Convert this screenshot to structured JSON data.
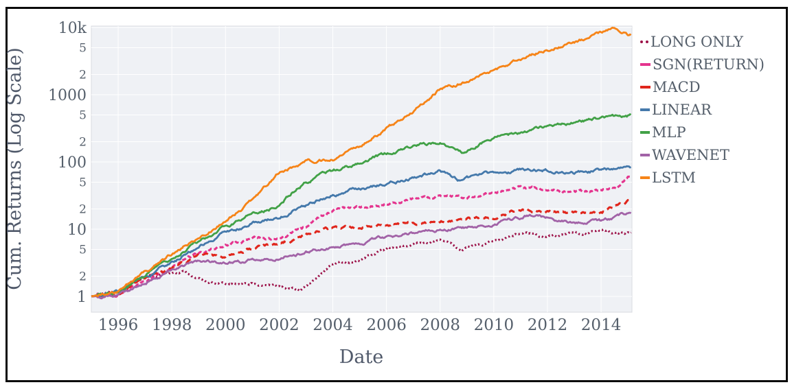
{
  "figure": {
    "background": "#ffffff",
    "border_color": "#0a0a0a"
  },
  "chart_data": {
    "type": "line",
    "title": "",
    "xlabel": "Date",
    "ylabel": "Cum. Returns (Log Scale)",
    "plot_bg": "#eff1f5",
    "grid_color": "#ffffff",
    "frame_color": "#d8dbe0",
    "text_color": "#555f6b",
    "grid": true,
    "legend_position": "right",
    "x_axis": {
      "range": [
        1995,
        2015.15
      ],
      "ticks": [
        {
          "label": "1996",
          "value": 1996
        },
        {
          "label": "1998",
          "value": 1998
        },
        {
          "label": "2000",
          "value": 2000
        },
        {
          "label": "2002",
          "value": 2002
        },
        {
          "label": "2004",
          "value": 2004
        },
        {
          "label": "2006",
          "value": 2006
        },
        {
          "label": "2008",
          "value": 2008
        },
        {
          "label": "2010",
          "value": 2010
        },
        {
          "label": "2012",
          "value": 2012
        },
        {
          "label": "2014",
          "value": 2014
        }
      ]
    },
    "y_axis": {
      "scale": "log",
      "range": [
        1,
        10000
      ],
      "ticks": [
        {
          "label": "10k",
          "value": 10000,
          "major": true
        },
        {
          "label": "5",
          "value": 5000,
          "major": false
        },
        {
          "label": "2",
          "value": 2000,
          "major": false
        },
        {
          "label": "1000",
          "value": 1000,
          "major": true
        },
        {
          "label": "5",
          "value": 500,
          "major": false
        },
        {
          "label": "2",
          "value": 200,
          "major": false
        },
        {
          "label": "100",
          "value": 100,
          "major": true
        },
        {
          "label": "5",
          "value": 50,
          "major": false
        },
        {
          "label": "2",
          "value": 20,
          "major": false
        },
        {
          "label": "10",
          "value": 10,
          "major": true
        },
        {
          "label": "5",
          "value": 5,
          "major": false
        },
        {
          "label": "2",
          "value": 2,
          "major": false
        },
        {
          "label": "1",
          "value": 1,
          "major": true
        }
      ]
    },
    "series": [
      {
        "name": "LONG ONLY",
        "color": "#9c1148",
        "dash": "dot",
        "points": [
          [
            1995,
            1
          ],
          [
            1996,
            1.2
          ],
          [
            1997,
            1.95
          ],
          [
            1998,
            2.2
          ],
          [
            1998.5,
            2.3
          ],
          [
            1999,
            1.8
          ],
          [
            2000,
            1.5
          ],
          [
            2001,
            1.6
          ],
          [
            2002,
            1.35
          ],
          [
            2002.8,
            1.26
          ],
          [
            2004,
            3
          ],
          [
            2005,
            3.4
          ],
          [
            2006,
            5
          ],
          [
            2007,
            5.8
          ],
          [
            2008,
            6.9
          ],
          [
            2008.8,
            4.8
          ],
          [
            2009.5,
            6
          ],
          [
            2010,
            6.5
          ],
          [
            2011.2,
            9.3
          ],
          [
            2012,
            7.8
          ],
          [
            2013,
            8.6
          ],
          [
            2014,
            9.3
          ],
          [
            2015,
            8.7
          ]
        ]
      },
      {
        "name": "SGN(RETURN)",
        "color": "#e4348e",
        "dash": "dash",
        "points": [
          [
            1995,
            1
          ],
          [
            1996,
            1.1
          ],
          [
            1997,
            1.7
          ],
          [
            1998,
            2.8
          ],
          [
            1999,
            4.3
          ],
          [
            2000,
            5.6
          ],
          [
            2001,
            7.5
          ],
          [
            2002,
            7.2
          ],
          [
            2002.5,
            8.8
          ],
          [
            2003,
            11
          ],
          [
            2004,
            19
          ],
          [
            2005,
            21
          ],
          [
            2006,
            24
          ],
          [
            2007,
            28
          ],
          [
            2008,
            30
          ],
          [
            2009,
            29
          ],
          [
            2010,
            33
          ],
          [
            2011,
            41
          ],
          [
            2012,
            38
          ],
          [
            2013,
            35
          ],
          [
            2014,
            38
          ],
          [
            2014.7,
            44
          ],
          [
            2015,
            62
          ]
        ]
      },
      {
        "name": "MACD",
        "color": "#e0261c",
        "dash": "dash",
        "points": [
          [
            1995,
            1
          ],
          [
            1996,
            1.1
          ],
          [
            1997,
            1.8
          ],
          [
            1998,
            2.6
          ],
          [
            1999,
            4.1
          ],
          [
            2000,
            3.9
          ],
          [
            2001,
            5.2
          ],
          [
            2002,
            6.1
          ],
          [
            2003,
            8.5
          ],
          [
            2004,
            10.2
          ],
          [
            2005,
            11
          ],
          [
            2006,
            11.8
          ],
          [
            2007,
            12.5
          ],
          [
            2008,
            13.5
          ],
          [
            2009,
            14.5
          ],
          [
            2010,
            15
          ],
          [
            2011,
            20
          ],
          [
            2012,
            18
          ],
          [
            2013,
            17.5
          ],
          [
            2014,
            17
          ],
          [
            2015,
            27
          ]
        ]
      },
      {
        "name": "LINEAR",
        "color": "#4579ab",
        "dash": "solid",
        "points": [
          [
            1995,
            1
          ],
          [
            1996,
            1.15
          ],
          [
            1997,
            1.9
          ],
          [
            1998,
            3.2
          ],
          [
            1999,
            5.5
          ],
          [
            2000,
            8.7
          ],
          [
            2001,
            12
          ],
          [
            2002,
            15
          ],
          [
            2003,
            22
          ],
          [
            2004,
            33
          ],
          [
            2005,
            40
          ],
          [
            2006,
            47
          ],
          [
            2007,
            57
          ],
          [
            2008,
            72
          ],
          [
            2008.7,
            53
          ],
          [
            2009,
            58
          ],
          [
            2010,
            68
          ],
          [
            2011,
            76
          ],
          [
            2012,
            77
          ],
          [
            2013,
            68
          ],
          [
            2014,
            75
          ],
          [
            2015,
            85
          ]
        ]
      },
      {
        "name": "MLP",
        "color": "#42a147",
        "dash": "solid",
        "points": [
          [
            1995,
            1
          ],
          [
            1996,
            1.15
          ],
          [
            1997,
            2
          ],
          [
            1998,
            3.7
          ],
          [
            1999,
            6.6
          ],
          [
            2000,
            11
          ],
          [
            2001,
            17
          ],
          [
            2002,
            22
          ],
          [
            2002.5,
            36
          ],
          [
            2003,
            50
          ],
          [
            2004,
            72
          ],
          [
            2005,
            95
          ],
          [
            2006,
            130
          ],
          [
            2007,
            170
          ],
          [
            2008,
            197
          ],
          [
            2008.8,
            140
          ],
          [
            2009,
            150
          ],
          [
            2010,
            230
          ],
          [
            2011,
            270
          ],
          [
            2012,
            330
          ],
          [
            2013,
            380
          ],
          [
            2014,
            450
          ],
          [
            2015,
            490
          ]
        ]
      },
      {
        "name": "WAVENET",
        "color": "#a263a7",
        "dash": "solid",
        "points": [
          [
            1995,
            1
          ],
          [
            1996,
            1.05
          ],
          [
            1997,
            1.6
          ],
          [
            1998,
            2.4
          ],
          [
            1999,
            3.4
          ],
          [
            2000,
            3
          ],
          [
            2001,
            3.4
          ],
          [
            2002,
            3.8
          ],
          [
            2003,
            4.6
          ],
          [
            2004,
            5.2
          ],
          [
            2005,
            6.2
          ],
          [
            2006,
            7.7
          ],
          [
            2007,
            8.8
          ],
          [
            2008,
            10
          ],
          [
            2009,
            10.5
          ],
          [
            2010,
            12
          ],
          [
            2011.3,
            16
          ],
          [
            2012,
            14.5
          ],
          [
            2013,
            12.5
          ],
          [
            2014,
            13
          ],
          [
            2015,
            17
          ]
        ]
      },
      {
        "name": "LSTM",
        "color": "#f68418",
        "dash": "solid",
        "points": [
          [
            1995,
            1
          ],
          [
            1996,
            1.2
          ],
          [
            1997,
            2.2
          ],
          [
            1998,
            4.3
          ],
          [
            1999,
            7.5
          ],
          [
            2000,
            13
          ],
          [
            2001,
            27
          ],
          [
            2002,
            70
          ],
          [
            2003,
            100
          ],
          [
            2004,
            110
          ],
          [
            2005,
            170
          ],
          [
            2006,
            310
          ],
          [
            2007,
            560
          ],
          [
            2008,
            1200
          ],
          [
            2009,
            1600
          ],
          [
            2010,
            2300
          ],
          [
            2011,
            3400
          ],
          [
            2012,
            4700
          ],
          [
            2013,
            6000
          ],
          [
            2014,
            8300
          ],
          [
            2014.5,
            9500
          ],
          [
            2015,
            7800
          ]
        ]
      }
    ]
  }
}
